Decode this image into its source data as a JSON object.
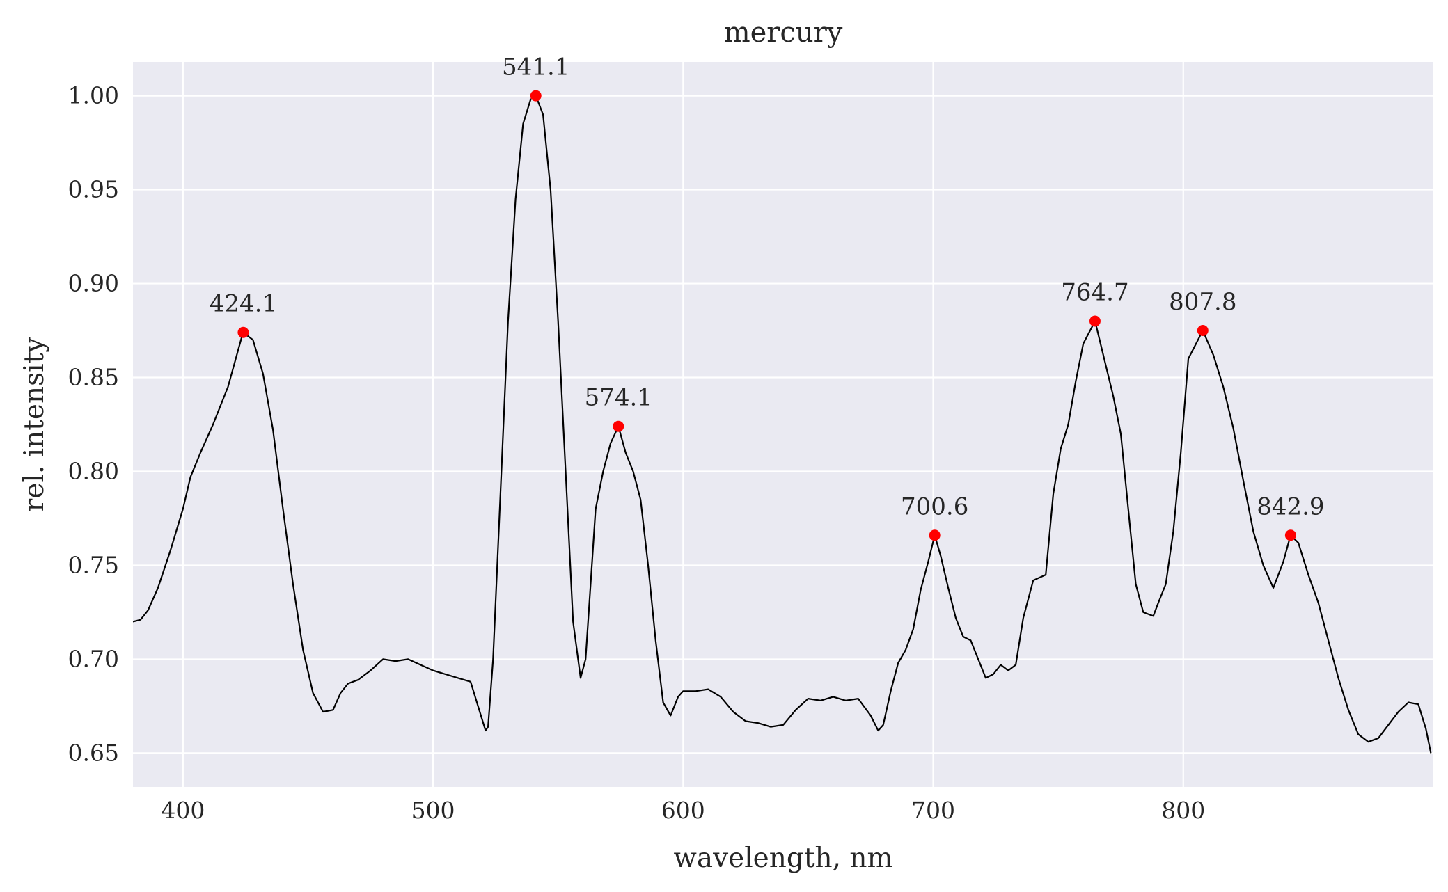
{
  "chart_data": {
    "type": "line",
    "title": "mercury",
    "xlabel": "wavelength, nm",
    "ylabel": "rel. intensity",
    "xlim": [
      380,
      900
    ],
    "ylim": [
      0.632,
      1.018
    ],
    "x_ticks": [
      400,
      500,
      600,
      700,
      800
    ],
    "x_tick_labels": [
      "400",
      "500",
      "600",
      "700",
      "800"
    ],
    "y_ticks": [
      0.65,
      0.7,
      0.75,
      0.8,
      0.85,
      0.9,
      0.95,
      1.0
    ],
    "y_tick_labels": [
      "0.65",
      "0.70",
      "0.75",
      "0.80",
      "0.85",
      "0.90",
      "0.95",
      "1.00"
    ],
    "grid": true,
    "colors": {
      "background": "#eaeaf2",
      "grid": "#ffffff",
      "line": "#000000",
      "marker": "#ff0000"
    },
    "series": [
      {
        "x": [
          380,
          383,
          386,
          390,
          395,
          400,
          403,
          407,
          412,
          418,
          424,
          428,
          432,
          436,
          440,
          444,
          448,
          452,
          456,
          460,
          463,
          466,
          470,
          475,
          480,
          485,
          490,
          495,
          500,
          505,
          510,
          515,
          518,
          521,
          522,
          524,
          527,
          530,
          533,
          536,
          539,
          541.1,
          544,
          547,
          550,
          553,
          556,
          559,
          561,
          563,
          565,
          568,
          571,
          574.1,
          577,
          580,
          583,
          586,
          589,
          592,
          595,
          598,
          600,
          605,
          610,
          615,
          620,
          625,
          630,
          635,
          640,
          645,
          650,
          655,
          660,
          665,
          670,
          675,
          678,
          680,
          683,
          686,
          689,
          692,
          695,
          698,
          700.6,
          703,
          706,
          709,
          712,
          715,
          718,
          721,
          724,
          727,
          730,
          733,
          736,
          740,
          745,
          748,
          751,
          754,
          757,
          760,
          764.7,
          768,
          772,
          775,
          778,
          781,
          784,
          786,
          788,
          790,
          793,
          796,
          799,
          802,
          807.8,
          812,
          816,
          820,
          824,
          828,
          832,
          836,
          840,
          842.9,
          846,
          850,
          854,
          858,
          862,
          866,
          870,
          874,
          878,
          882,
          886,
          890,
          894,
          897,
          899
        ],
        "y": [
          0.72,
          0.721,
          0.726,
          0.738,
          0.758,
          0.78,
          0.797,
          0.81,
          0.825,
          0.845,
          0.874,
          0.87,
          0.852,
          0.822,
          0.78,
          0.74,
          0.705,
          0.682,
          0.672,
          0.673,
          0.682,
          0.687,
          0.689,
          0.694,
          0.7,
          0.699,
          0.7,
          0.697,
          0.694,
          0.692,
          0.69,
          0.688,
          0.675,
          0.662,
          0.664,
          0.7,
          0.79,
          0.88,
          0.945,
          0.985,
          0.998,
          1.0,
          0.99,
          0.95,
          0.88,
          0.8,
          0.72,
          0.69,
          0.7,
          0.74,
          0.78,
          0.8,
          0.815,
          0.824,
          0.81,
          0.8,
          0.785,
          0.75,
          0.71,
          0.677,
          0.67,
          0.68,
          0.683,
          0.683,
          0.684,
          0.68,
          0.672,
          0.667,
          0.666,
          0.664,
          0.665,
          0.673,
          0.679,
          0.678,
          0.68,
          0.678,
          0.679,
          0.67,
          0.662,
          0.665,
          0.683,
          0.698,
          0.705,
          0.716,
          0.737,
          0.752,
          0.766,
          0.755,
          0.738,
          0.722,
          0.712,
          0.71,
          0.7,
          0.69,
          0.692,
          0.697,
          0.694,
          0.697,
          0.722,
          0.742,
          0.745,
          0.788,
          0.812,
          0.825,
          0.848,
          0.868,
          0.88,
          0.862,
          0.84,
          0.82,
          0.78,
          0.74,
          0.725,
          0.724,
          0.723,
          0.73,
          0.74,
          0.768,
          0.81,
          0.86,
          0.875,
          0.862,
          0.845,
          0.823,
          0.795,
          0.768,
          0.75,
          0.738,
          0.752,
          0.766,
          0.762,
          0.745,
          0.73,
          0.71,
          0.69,
          0.673,
          0.66,
          0.656,
          0.658,
          0.665,
          0.672,
          0.677,
          0.676,
          0.663,
          0.65
        ]
      }
    ],
    "peaks": [
      {
        "x": 424.1,
        "y": 0.874,
        "label": "424.1"
      },
      {
        "x": 541.1,
        "y": 1.0,
        "label": "541.1"
      },
      {
        "x": 574.1,
        "y": 0.824,
        "label": "574.1"
      },
      {
        "x": 700.6,
        "y": 0.766,
        "label": "700.6"
      },
      {
        "x": 764.7,
        "y": 0.88,
        "label": "764.7"
      },
      {
        "x": 807.8,
        "y": 0.875,
        "label": "807.8"
      },
      {
        "x": 842.9,
        "y": 0.766,
        "label": "842.9"
      }
    ]
  }
}
